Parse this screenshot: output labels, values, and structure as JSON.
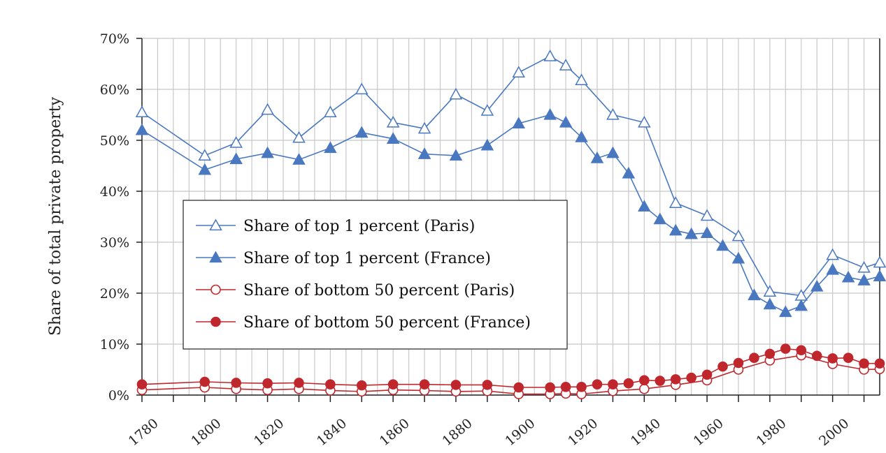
{
  "chart_data": {
    "type": "line",
    "title": "",
    "xlabel": "",
    "ylabel": "Share of total private property",
    "xlim": [
      1780,
      2015
    ],
    "ylim": [
      0,
      70
    ],
    "x_ticks": [
      "1780",
      "1800",
      "1820",
      "1840",
      "1860",
      "1880",
      "1900",
      "1920",
      "1940",
      "1960",
      "1980",
      "2000"
    ],
    "y_ticks": [
      "0%",
      "10%",
      "20%",
      "30%",
      "40%",
      "50%",
      "60%",
      "70%"
    ],
    "grid": true,
    "legend_position": "left-center",
    "series": [
      {
        "name": "Share of top 1 percent (Paris)",
        "color": "#4a78c0",
        "marker": "triangle-open",
        "points": [
          [
            1780,
            55.5
          ],
          [
            1800,
            47
          ],
          [
            1810,
            49.5
          ],
          [
            1820,
            56
          ],
          [
            1830,
            50.5
          ],
          [
            1840,
            55.5
          ],
          [
            1850,
            60
          ],
          [
            1860,
            53.5
          ],
          [
            1870,
            52.3
          ],
          [
            1880,
            59
          ],
          [
            1890,
            55.8
          ],
          [
            1900,
            63.3
          ],
          [
            1910,
            66.5
          ],
          [
            1915,
            64.7
          ],
          [
            1920,
            61.8
          ],
          [
            1930,
            55
          ],
          [
            1940,
            53.5
          ],
          [
            1950,
            37.7
          ],
          [
            1960,
            35.2
          ],
          [
            1970,
            31.2
          ],
          [
            1980,
            20.3
          ],
          [
            1990,
            19.5
          ],
          [
            2000,
            27.5
          ],
          [
            2010,
            25
          ],
          [
            2015,
            26
          ]
        ]
      },
      {
        "name": "Share of top 1 percent (France)",
        "color": "#4a78c0",
        "marker": "triangle-filled",
        "points": [
          [
            1780,
            52
          ],
          [
            1800,
            44.2
          ],
          [
            1810,
            46.3
          ],
          [
            1820,
            47.5
          ],
          [
            1830,
            46.2
          ],
          [
            1840,
            48.5
          ],
          [
            1850,
            51.5
          ],
          [
            1860,
            50.3
          ],
          [
            1870,
            47.3
          ],
          [
            1880,
            47
          ],
          [
            1890,
            49
          ],
          [
            1900,
            53.3
          ],
          [
            1910,
            55
          ],
          [
            1915,
            53.5
          ],
          [
            1920,
            50.6
          ],
          [
            1925,
            46.5
          ],
          [
            1930,
            47.5
          ],
          [
            1935,
            43.5
          ],
          [
            1940,
            37
          ],
          [
            1945,
            34.5
          ],
          [
            1950,
            32.3
          ],
          [
            1955,
            31.6
          ],
          [
            1960,
            31.8
          ],
          [
            1965,
            29.3
          ],
          [
            1970,
            26.8
          ],
          [
            1975,
            19.6
          ],
          [
            1980,
            17.8
          ],
          [
            1985,
            16.3
          ],
          [
            1990,
            17.5
          ],
          [
            1995,
            21.3
          ],
          [
            2000,
            24.6
          ],
          [
            2005,
            23.1
          ],
          [
            2010,
            22.5
          ],
          [
            2015,
            23.3
          ]
        ]
      },
      {
        "name": "Share of bottom 50 percent (Paris)",
        "color": "#c0272d",
        "marker": "circle-open",
        "points": [
          [
            1780,
            1
          ],
          [
            1800,
            1.5
          ],
          [
            1810,
            1.2
          ],
          [
            1820,
            1
          ],
          [
            1830,
            1.2
          ],
          [
            1840,
            0.9
          ],
          [
            1850,
            0.7
          ],
          [
            1860,
            1
          ],
          [
            1870,
            0.9
          ],
          [
            1880,
            0.7
          ],
          [
            1890,
            0.8
          ],
          [
            1900,
            0.2
          ],
          [
            1910,
            0.2
          ],
          [
            1915,
            0.3
          ],
          [
            1920,
            0.2
          ],
          [
            1930,
            0.8
          ],
          [
            1940,
            1.2
          ],
          [
            1950,
            2
          ],
          [
            1960,
            2.9
          ],
          [
            1970,
            5
          ],
          [
            1980,
            6.8
          ],
          [
            1990,
            7.8
          ],
          [
            2000,
            6.1
          ],
          [
            2010,
            5
          ],
          [
            2015,
            5.1
          ]
        ]
      },
      {
        "name": "Share of bottom 50 percent (France)",
        "color": "#c0272d",
        "marker": "circle-filled",
        "points": [
          [
            1780,
            2.1
          ],
          [
            1800,
            2.6
          ],
          [
            1810,
            2.4
          ],
          [
            1820,
            2.3
          ],
          [
            1830,
            2.4
          ],
          [
            1840,
            2.1
          ],
          [
            1850,
            1.9
          ],
          [
            1860,
            2.1
          ],
          [
            1870,
            2.1
          ],
          [
            1880,
            2
          ],
          [
            1890,
            2
          ],
          [
            1900,
            1.5
          ],
          [
            1910,
            1.5
          ],
          [
            1915,
            1.6
          ],
          [
            1920,
            1.6
          ],
          [
            1925,
            2.1
          ],
          [
            1930,
            2.1
          ],
          [
            1935,
            2.3
          ],
          [
            1940,
            2.9
          ],
          [
            1945,
            2.8
          ],
          [
            1950,
            3.1
          ],
          [
            1955,
            3.4
          ],
          [
            1960,
            4
          ],
          [
            1965,
            5.6
          ],
          [
            1970,
            6.3
          ],
          [
            1975,
            7.3
          ],
          [
            1980,
            8.1
          ],
          [
            1985,
            9.1
          ],
          [
            1990,
            8.8
          ],
          [
            1995,
            7.7
          ],
          [
            2000,
            7.2
          ],
          [
            2005,
            7.3
          ],
          [
            2010,
            6.2
          ],
          [
            2015,
            6.2
          ]
        ]
      }
    ]
  }
}
